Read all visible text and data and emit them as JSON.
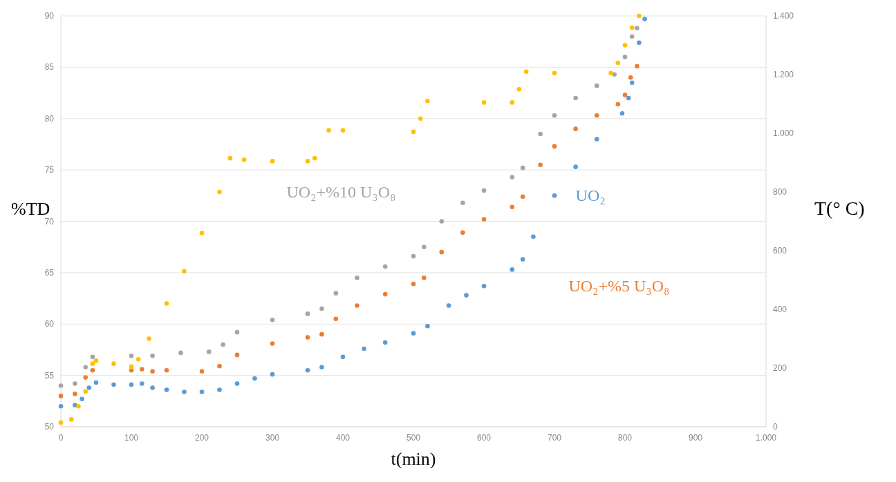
{
  "chart_data": {
    "type": "scatter",
    "xlabel": "t(min)",
    "ylabel": "%TD",
    "y2label": "T(° C)",
    "marker": "circle",
    "grid": "y",
    "xlim": [
      0,
      1000
    ],
    "xticks": [
      0,
      100,
      200,
      300,
      400,
      500,
      600,
      700,
      800,
      900,
      {
        "value": 1000,
        "label": "1.000"
      }
    ],
    "ylim": [
      50,
      90
    ],
    "yticks": [
      50,
      55,
      60,
      65,
      70,
      75,
      80,
      85,
      90
    ],
    "y2lim": [
      0,
      1400
    ],
    "y2ticks": [
      0,
      200,
      400,
      600,
      800,
      {
        "value": 1000,
        "label": "1.000"
      },
      {
        "value": 1200,
        "label": "1.200"
      },
      {
        "value": 1400,
        "label": "1.400"
      }
    ],
    "series": [
      {
        "name": "UO₂",
        "color": "#5b9bd5",
        "x": [
          0,
          20,
          30,
          40,
          50,
          75,
          100,
          115,
          130,
          150,
          175,
          200,
          225,
          250,
          275,
          300,
          350,
          370,
          400,
          430,
          460,
          500,
          520,
          550,
          575,
          600,
          640,
          655,
          670,
          700,
          730,
          760,
          796,
          805,
          810,
          820,
          828
        ],
        "values": [
          52,
          52.1,
          52.7,
          53.8,
          54.3,
          54.1,
          54.1,
          54.2,
          53.8,
          53.6,
          53.4,
          53.4,
          53.6,
          54.2,
          54.7,
          55.1,
          55.5,
          55.8,
          56.8,
          57.6,
          58.2,
          59.1,
          59.8,
          61.8,
          62.8,
          63.7,
          65.3,
          66.3,
          68.5,
          72.5,
          75.3,
          78,
          80.5,
          82,
          83.5,
          87.4,
          89.7
        ]
      },
      {
        "name": "UO₂+%5 U₃O₈",
        "color": "#ed7d31",
        "x": [
          0,
          20,
          35,
          45,
          100,
          115,
          130,
          150,
          200,
          225,
          250,
          300,
          350,
          370,
          390,
          420,
          460,
          500,
          515,
          540,
          570,
          600,
          640,
          655,
          680,
          700,
          730,
          760,
          790,
          800,
          808,
          817
        ],
        "values": [
          53,
          53.2,
          54.8,
          55.5,
          55.5,
          55.6,
          55.4,
          55.5,
          55.4,
          55.9,
          57,
          58.1,
          58.7,
          59,
          60.5,
          61.8,
          62.9,
          63.9,
          64.5,
          67,
          68.9,
          70.2,
          71.4,
          72.4,
          75.5,
          77.3,
          79,
          80.3,
          81.4,
          82.3,
          84,
          85.1
        ]
      },
      {
        "name": "UO₂+%10 U₃O₈",
        "color": "#a5a5a5",
        "x": [
          0,
          20,
          35,
          45,
          100,
          130,
          170,
          210,
          230,
          250,
          300,
          350,
          370,
          390,
          420,
          460,
          500,
          515,
          540,
          570,
          600,
          640,
          655,
          680,
          700,
          730,
          760,
          785,
          800,
          810,
          817
        ],
        "values": [
          54,
          54.2,
          55.8,
          56.8,
          56.9,
          56.9,
          57.2,
          57.3,
          58,
          59.2,
          60.4,
          61,
          61.5,
          63,
          64.5,
          65.6,
          66.6,
          67.5,
          70,
          71.8,
          73,
          74.3,
          75.2,
          78.5,
          80.3,
          82,
          83.2,
          84.3,
          86,
          88,
          88.8
        ]
      },
      {
        "color": "#ffc000",
        "axis": "y2",
        "x": [
          0,
          15,
          25,
          35,
          45,
          50,
          75,
          100,
          110,
          125,
          150,
          175,
          200,
          225,
          240,
          260,
          300,
          350,
          360,
          380,
          400,
          500,
          510,
          520,
          600,
          640,
          650,
          660,
          700,
          780,
          790,
          800,
          810,
          820
        ],
        "values": [
          14,
          25,
          70,
          120,
          215,
          225,
          215,
          205,
          230,
          300,
          420,
          530,
          660,
          800,
          915,
          910,
          905,
          905,
          915,
          1010,
          1010,
          1005,
          1050,
          1110,
          1105,
          1105,
          1150,
          1210,
          1205,
          1205,
          1240,
          1300,
          1360,
          1400
        ]
      }
    ]
  }
}
